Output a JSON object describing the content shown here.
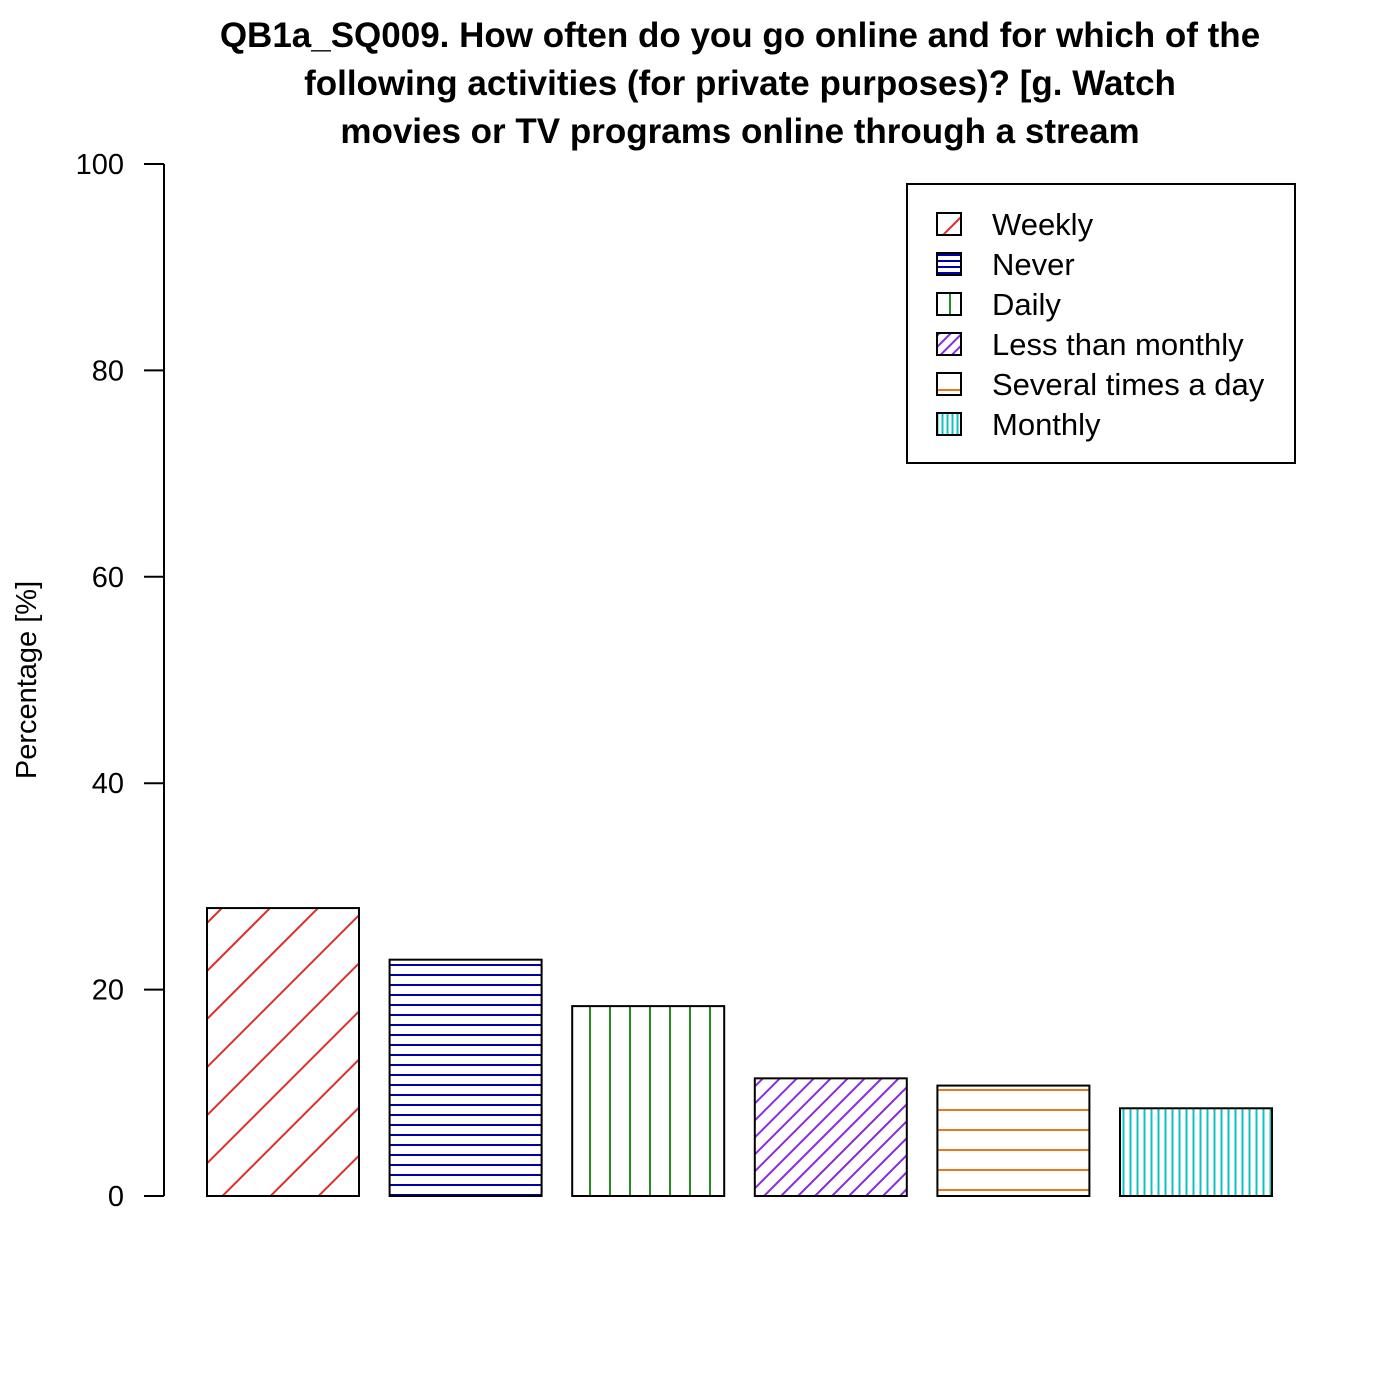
{
  "chart_data": {
    "type": "bar",
    "title_lines": [
      "QB1a_SQ009. How often do you go online and for which of the",
      "following activities (for private purposes)? [g. Watch",
      "movies or TV programs online through a stream"
    ],
    "ylabel": "Percentage [%]",
    "xlabel": "",
    "ylim": [
      0,
      100
    ],
    "yticks": [
      0,
      20,
      40,
      60,
      80,
      100
    ],
    "categories": [
      "Weekly",
      "Never",
      "Daily",
      "Less than monthly",
      "Several times a day",
      "Monthly"
    ],
    "values": [
      27.9,
      22.9,
      18.4,
      11.4,
      10.7,
      8.5
    ],
    "colors": [
      "#DF2E2E",
      "#0000A8",
      "#228B22",
      "#8A2BE2",
      "#E37B1C",
      "#11C0C0"
    ],
    "patterns": [
      "diagonal-wide",
      "horizontal-dense",
      "vertical-wide",
      "diagonal-dense",
      "horizontal-wide",
      "vertical-dense"
    ],
    "legend": {
      "position": "top-right",
      "entries": [
        "Weekly",
        "Never",
        "Daily",
        "Less than monthly",
        "Several times a day",
        "Monthly"
      ]
    },
    "grid": false
  }
}
